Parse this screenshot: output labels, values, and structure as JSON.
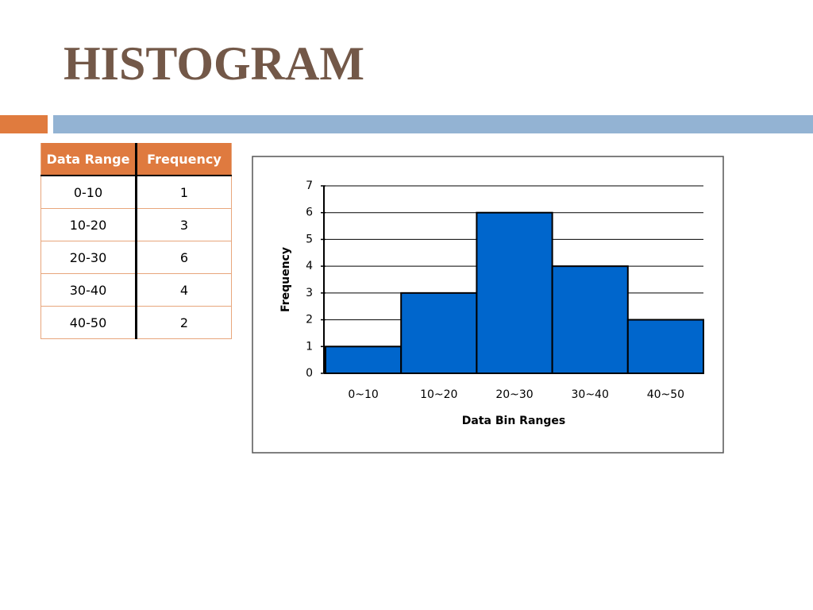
{
  "title": "HISTOGRAM",
  "table": {
    "header": [
      "Data Range",
      "Frequency"
    ],
    "rows": [
      [
        "0-10",
        1
      ],
      [
        "10-20",
        3
      ],
      [
        "20-30",
        6
      ],
      [
        "30-40",
        4
      ],
      [
        "40-50",
        2
      ]
    ]
  },
  "chart_data": {
    "type": "bar",
    "categories": [
      "0~10",
      "10~20",
      "20~30",
      "30~40",
      "40~50"
    ],
    "values": [
      1,
      3,
      6,
      4,
      2
    ],
    "color": "#0066cc",
    "x_label": "Data Bin Ranges",
    "y_label": "Frequency",
    "ylim": [
      0,
      7
    ],
    "yticks": [
      0,
      1,
      2,
      3,
      4,
      5,
      6,
      7
    ],
    "grid": true
  }
}
